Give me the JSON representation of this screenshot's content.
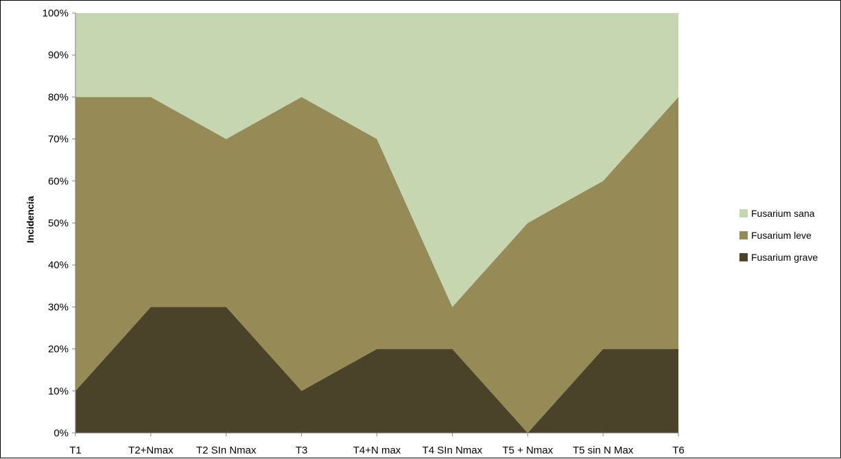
{
  "chart_data": {
    "type": "area",
    "stacked": true,
    "percent": true,
    "categories": [
      "T1",
      "T2+Nmax",
      "T2 SIn Nmax",
      "T3",
      "T4+N max",
      "T4 SIn Nmax",
      "T5 + Nmax",
      "T5 sin N Max",
      "T6"
    ],
    "series": [
      {
        "name": "Fusarium grave",
        "color": "#4a432a",
        "values": [
          10,
          30,
          30,
          10,
          20,
          20,
          0,
          20,
          20
        ]
      },
      {
        "name": "Fusarium leve",
        "color": "#968b56",
        "values": [
          70,
          50,
          40,
          70,
          50,
          10,
          50,
          40,
          60
        ]
      },
      {
        "name": "Fusarium sana",
        "color": "#c5d6b0",
        "values": [
          20,
          20,
          30,
          20,
          30,
          70,
          50,
          40,
          20
        ]
      }
    ],
    "ylabel": "Incidencia",
    "ylim": [
      0,
      100
    ],
    "yticks": [
      "0%",
      "10%",
      "20%",
      "30%",
      "40%",
      "50%",
      "60%",
      "70%",
      "80%",
      "90%",
      "100%"
    ],
    "legend": {
      "position": "right",
      "order": [
        "Fusarium sana",
        "Fusarium leve",
        "Fusarium grave"
      ]
    },
    "grid": false
  }
}
